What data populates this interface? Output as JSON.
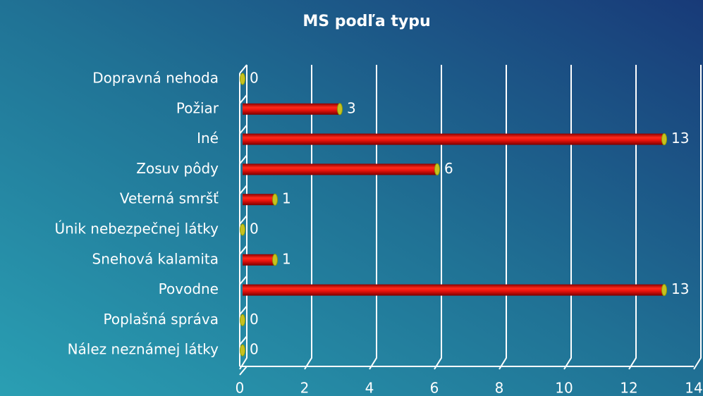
{
  "chart_data": {
    "type": "bar",
    "orientation": "horizontal",
    "title": "MS podľa typu",
    "categories": [
      "Dopravná nehoda",
      "Požiar",
      "Iné",
      "Zosuv pôdy",
      "Veterná smršť",
      "Únik nebezpečnej látky",
      "Snehová kalamita",
      "Povodne",
      "Poplašná správa",
      "Nález neznámej látky"
    ],
    "values": [
      0,
      3,
      13,
      6,
      1,
      0,
      1,
      13,
      0,
      0
    ],
    "color": "#e8120c",
    "xlim": [
      0,
      14
    ],
    "xticks": [
      0,
      2,
      4,
      6,
      8,
      10,
      12,
      14
    ],
    "grid": true
  }
}
